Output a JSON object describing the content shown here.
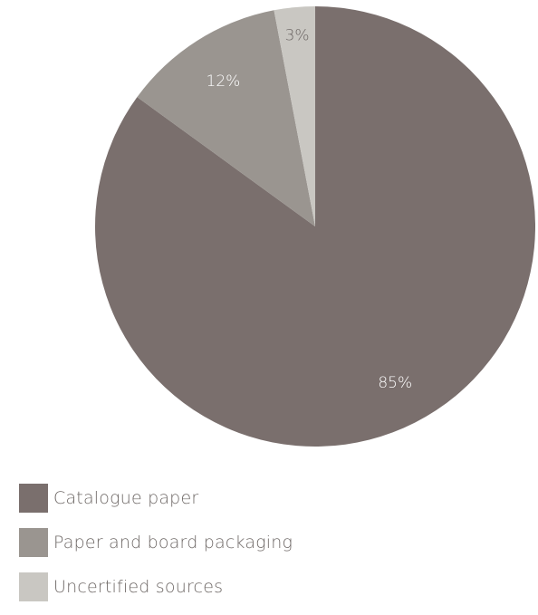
{
  "chart_data": {
    "type": "pie",
    "slices": [
      {
        "label": "Catalogue paper",
        "value": 85,
        "display": "85%",
        "color": "#7a6f6d",
        "text_color": "#ffffff"
      },
      {
        "label": "Paper and board packaging",
        "value": 12,
        "display": "12%",
        "color": "#9a9590",
        "text_color": "#ffffff"
      },
      {
        "label": "Uncertified sources",
        "value": 3,
        "display": "3%",
        "color": "#c9c7c2",
        "text_color": "#6e6866"
      }
    ],
    "start_angle_deg": 0,
    "direction": "clockwise",
    "legend_position": "bottom-left"
  },
  "legend": {
    "items": [
      {
        "label": "Catalogue paper",
        "color": "#7a6f6d"
      },
      {
        "label": "Paper and board packaging",
        "color": "#9a9590"
      },
      {
        "label": "Uncertified sources",
        "color": "#c9c7c2"
      }
    ]
  }
}
